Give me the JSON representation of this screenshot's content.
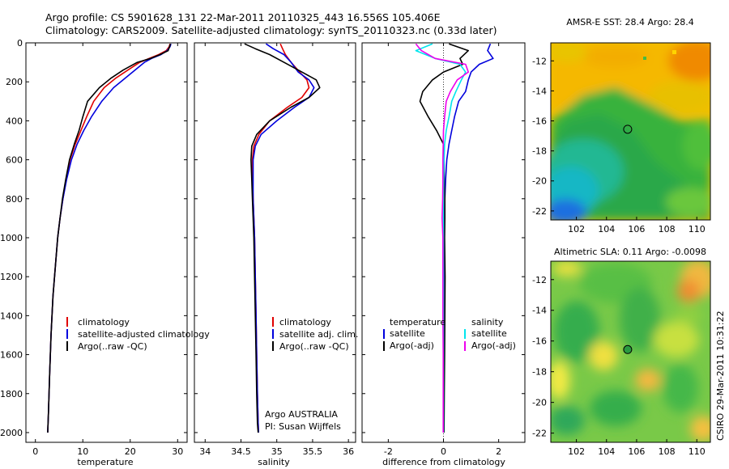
{
  "figure": {
    "title_line1": "Argo profile: CS 5901628_131 22-Mar-2011 20110325_443 16.556S 105.406E",
    "title_line2": "Climatology: CARS2009. Satellite-adjusted climatology: synTS_20110323.nc (0.33d later)",
    "credit": "CSIRO 29-Mar-2011 10:31:22",
    "colors": {
      "climatology": "#e00000",
      "satellite": "#0000dd",
      "argo": "#000000",
      "cyan": "#00e5ee",
      "magenta": "#ee00ee"
    }
  },
  "chart_data": [
    {
      "type": "line",
      "panel": "temperature",
      "xlabel": "temperature",
      "ylabel": "",
      "xlim": [
        -2,
        32
      ],
      "ylim": [
        0,
        2050
      ],
      "y_inverted": true,
      "xticks": [
        0,
        10,
        20,
        30
      ],
      "yticks": [
        0,
        200,
        400,
        600,
        800,
        1000,
        1200,
        1400,
        1600,
        1800,
        2000
      ],
      "legend": [
        "climatology",
        "satellite-adjusted climatology",
        "Argo(..raw -QC)"
      ],
      "series": [
        {
          "name": "climatology",
          "color": "#e00000",
          "x": [
            28.4,
            28.2,
            27.6,
            26.0,
            24.0,
            22.0,
            19.5,
            17.0,
            14.5,
            12.3,
            10.8,
            9.6,
            8.4,
            7.3,
            6.5,
            5.8,
            5.2,
            4.7,
            4.2,
            3.7,
            3.3,
            3.0,
            2.75,
            2.6
          ],
          "y": [
            5,
            20,
            40,
            60,
            80,
            100,
            140,
            180,
            230,
            300,
            380,
            450,
            520,
            600,
            700,
            800,
            900,
            1000,
            1150,
            1300,
            1500,
            1700,
            1900,
            2000
          ]
        },
        {
          "name": "satellite-adjusted climatology",
          "color": "#0000dd",
          "x": [
            28.6,
            28.4,
            27.8,
            26.5,
            24.5,
            23.0,
            21.0,
            19.0,
            16.5,
            14.0,
            11.8,
            10.2,
            8.8,
            7.6,
            6.6,
            5.8,
            5.2,
            4.7,
            4.2,
            3.7,
            3.3,
            3.0,
            2.75,
            2.6
          ],
          "y": [
            5,
            20,
            40,
            60,
            80,
            100,
            140,
            180,
            230,
            300,
            380,
            450,
            520,
            600,
            700,
            800,
            900,
            1000,
            1150,
            1300,
            1500,
            1700,
            1900,
            2000
          ]
        },
        {
          "name": "Argo(..raw -QC)",
          "color": "#000000",
          "x": [
            28.5,
            28.3,
            28.0,
            26.3,
            24.3,
            21.5,
            18.5,
            16.0,
            13.5,
            11.0,
            10.0,
            9.2,
            8.2,
            7.2,
            6.4,
            5.7,
            5.2,
            4.7,
            4.2,
            3.7,
            3.3,
            3.0,
            2.75,
            2.6
          ],
          "y": [
            5,
            20,
            40,
            60,
            80,
            100,
            140,
            180,
            230,
            300,
            380,
            450,
            520,
            600,
            700,
            800,
            900,
            1000,
            1150,
            1300,
            1500,
            1700,
            1900,
            2000
          ]
        }
      ]
    },
    {
      "type": "line",
      "panel": "salinity",
      "xlabel": "salinity",
      "ylabel": "",
      "xlim": [
        33.85,
        36.1
      ],
      "ylim": [
        0,
        2050
      ],
      "y_inverted": true,
      "xticks": [
        34,
        34.5,
        35,
        35.5,
        36
      ],
      "legend": [
        "climatology",
        "satellite adj. clim.",
        "Argo(..raw -QC)"
      ],
      "annotation": [
        "Argo AUSTRALIA",
        "PI: Susan Wijffels"
      ],
      "series": [
        {
          "name": "climatology",
          "color": "#e00000",
          "x": [
            35.05,
            35.08,
            35.12,
            35.2,
            35.32,
            35.42,
            35.45,
            35.35,
            35.15,
            34.9,
            34.75,
            34.68,
            34.66,
            34.66,
            34.67,
            34.68,
            34.69,
            34.7,
            34.71,
            34.72,
            34.73,
            34.74,
            34.745
          ],
          "y": [
            5,
            30,
            60,
            100,
            150,
            190,
            230,
            280,
            330,
            400,
            470,
            530,
            600,
            700,
            800,
            900,
            1000,
            1200,
            1400,
            1600,
            1800,
            1950,
            2000
          ]
        },
        {
          "name": "satellite adj. clim.",
          "color": "#0000dd",
          "x": [
            34.85,
            34.95,
            35.1,
            35.2,
            35.3,
            35.45,
            35.52,
            35.45,
            35.25,
            35.0,
            34.78,
            34.7,
            34.67,
            34.67,
            34.67,
            34.68,
            34.69,
            34.7,
            34.71,
            34.72,
            34.73,
            34.74,
            34.745
          ],
          "y": [
            5,
            30,
            60,
            100,
            150,
            190,
            230,
            280,
            330,
            400,
            470,
            530,
            600,
            700,
            800,
            900,
            1000,
            1200,
            1400,
            1600,
            1800,
            1950,
            2000
          ]
        },
        {
          "name": "Argo(..raw -QC)",
          "color": "#000000",
          "x": [
            34.55,
            34.7,
            34.9,
            35.1,
            35.35,
            35.55,
            35.6,
            35.45,
            35.2,
            34.9,
            34.72,
            34.65,
            34.64,
            34.65,
            34.66,
            34.67,
            34.68,
            34.69,
            34.7,
            34.71,
            34.72,
            34.73,
            34.74
          ],
          "y": [
            5,
            30,
            60,
            100,
            150,
            190,
            230,
            280,
            330,
            400,
            470,
            530,
            600,
            700,
            800,
            900,
            1000,
            1200,
            1400,
            1600,
            1800,
            1950,
            2000
          ]
        }
      ]
    },
    {
      "type": "line",
      "panel": "difference",
      "xlabel": "difference from climatology",
      "ylabel": "",
      "xlim": [
        -2.95,
        2.95
      ],
      "ylim": [
        0,
        2050
      ],
      "y_inverted": true,
      "xticks": [
        -2,
        0,
        2
      ],
      "legend_temperature_header": "temperature",
      "legend_salinity_header": "salinity",
      "legend_temperature": [
        "satellite",
        "Argo(-adj)"
      ],
      "legend_salinity": [
        "satellite",
        "Argo(-adj)"
      ],
      "series": [
        {
          "name": "temperature satellite",
          "color": "#0000dd",
          "x": [
            1.7,
            1.6,
            1.8,
            1.3,
            1.0,
            0.9,
            0.8,
            0.55,
            0.4,
            0.3,
            0.2,
            0.12,
            0.08,
            0.05,
            0.03,
            0.02,
            0.02,
            0.01,
            0.01,
            0.0,
            0.0
          ],
          "y": [
            5,
            40,
            80,
            110,
            150,
            190,
            250,
            300,
            380,
            450,
            520,
            600,
            700,
            800,
            900,
            1000,
            1200,
            1400,
            1600,
            1800,
            2000
          ]
        },
        {
          "name": "temperature Argo(-adj)",
          "color": "#000000",
          "x": [
            0.2,
            0.9,
            0.6,
            0.7,
            0.0,
            -0.4,
            -0.75,
            -0.85,
            -0.55,
            -0.25,
            0.0,
            0.02,
            0.03,
            0.05,
            0.05,
            0.04,
            0.06,
            0.05,
            0.04,
            0.03,
            0.02
          ],
          "y": [
            5,
            40,
            80,
            110,
            150,
            190,
            250,
            300,
            380,
            450,
            520,
            600,
            700,
            800,
            900,
            1000,
            1200,
            1400,
            1600,
            1800,
            2000
          ]
        },
        {
          "name": "salinity satellite",
          "color": "#00e5ee",
          "x": [
            -0.4,
            -1.0,
            -0.3,
            0.6,
            0.8,
            0.65,
            0.45,
            0.3,
            0.2,
            0.1,
            0.04,
            0.02,
            0.01,
            0.0,
            0.0,
            0.0,
            0.0,
            0.0,
            0.0,
            0.0,
            0.0
          ],
          "y": [
            5,
            40,
            80,
            110,
            150,
            190,
            250,
            300,
            380,
            450,
            520,
            600,
            700,
            800,
            900,
            1000,
            1200,
            1400,
            1600,
            1800,
            2000
          ]
        },
        {
          "name": "salinity Argo(-adj)",
          "color": "#ee00ee",
          "x": [
            -1.0,
            -0.8,
            -0.3,
            0.8,
            0.9,
            0.5,
            0.25,
            0.1,
            0.04,
            0.0,
            -0.01,
            -0.02,
            -0.02,
            -0.03,
            -0.05,
            -0.02,
            -0.02,
            -0.02,
            -0.01,
            -0.01,
            -0.01
          ],
          "y": [
            5,
            40,
            80,
            110,
            150,
            190,
            250,
            300,
            380,
            450,
            520,
            600,
            700,
            800,
            900,
            1000,
            1200,
            1400,
            1600,
            1800,
            2000
          ]
        }
      ]
    },
    {
      "type": "heatmap",
      "panel": "sst_map",
      "title": "AMSR-E SST: 28.4 Argo: 28.4",
      "xlim": [
        100.3,
        110.9
      ],
      "ylim": [
        -22.6,
        -10.8
      ],
      "xticks": [
        102,
        104,
        106,
        108,
        110
      ],
      "yticks": [
        -12,
        -14,
        -16,
        -18,
        -20,
        -22
      ],
      "marker": {
        "lon": 105.406,
        "lat": -16.556
      }
    },
    {
      "type": "heatmap",
      "panel": "sla_map",
      "title": "Altimetric SLA: 0.11 Argo: -0.0098",
      "xlim": [
        100.3,
        110.9
      ],
      "ylim": [
        -22.6,
        -10.8
      ],
      "xticks": [
        102,
        104,
        106,
        108,
        110
      ],
      "yticks": [
        -12,
        -14,
        -16,
        -18,
        -20,
        -22
      ],
      "marker": {
        "lon": 105.406,
        "lat": -16.556
      }
    }
  ]
}
